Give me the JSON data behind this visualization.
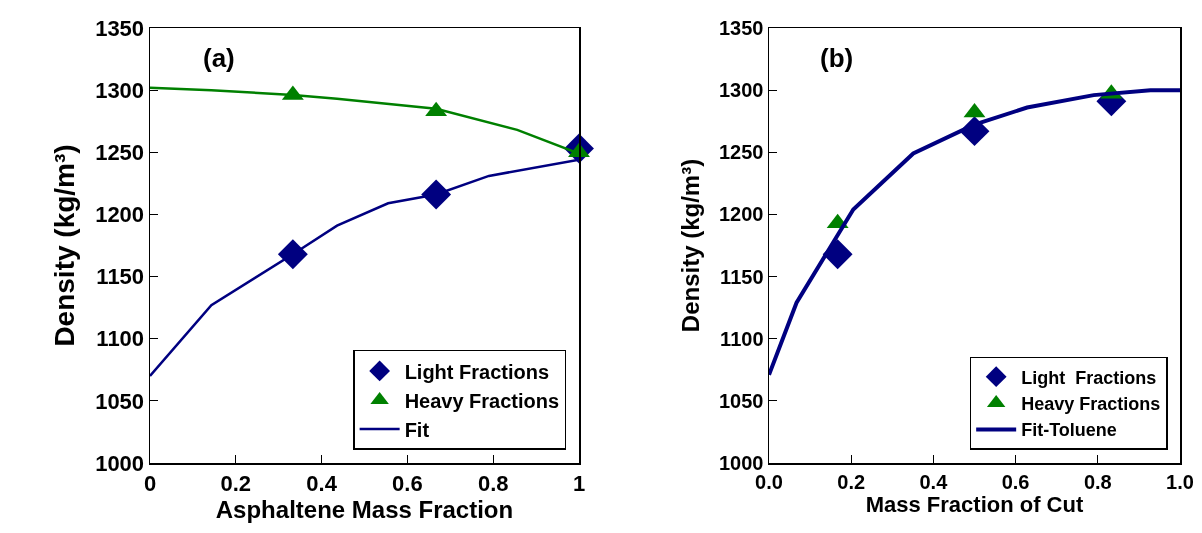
{
  "chart_data": [
    {
      "type": "scatter",
      "xlabel": "Asphaltene Mass Fraction",
      "ylabel": "Density (kg/m³)",
      "annotations": [
        "(a)"
      ],
      "xlim": [
        0,
        1
      ],
      "xticks": [
        0,
        0.2,
        0.4,
        0.6,
        0.8,
        1
      ],
      "ylim": [
        1000,
        1350
      ],
      "yticks": [
        1000,
        1050,
        1100,
        1150,
        1200,
        1250,
        1300,
        1350
      ],
      "grid": false,
      "legend": "bottom right",
      "series": [
        {
          "name": "Light Fractions",
          "marker": "diamond",
          "color": "#000080",
          "x": [
            0.333,
            0.667,
            1
          ],
          "values": [
            1168,
            1216,
            1253
          ]
        },
        {
          "name": "Heavy Fractions",
          "marker": "triangle",
          "color": "#008000",
          "x": [
            0.333,
            0.667,
            1
          ],
          "values": [
            1296,
            1283,
            1250
          ]
        },
        {
          "name": "Fit",
          "type": "line",
          "color": "#000080",
          "x": [
            0,
            0.143,
            0.333,
            0.436,
            0.555,
            0.667,
            0.79,
            1
          ],
          "values": [
            1070,
            1127,
            1168,
            1191,
            1209,
            1216,
            1231,
            1244
          ]
        },
        {
          "type": "line",
          "color": "#008000",
          "x": [
            0,
            0.143,
            0.333,
            0.436,
            0.667,
            0.856,
            1
          ],
          "values": [
            1302,
            1300,
            1296,
            1293,
            1285,
            1268,
            1249
          ]
        }
      ]
    },
    {
      "type": "scatter",
      "xlabel": "Mass Fraction of Cut",
      "ylabel": "Density (kg/m³)",
      "annotations": [
        "(b)"
      ],
      "xlim": [
        0,
        1
      ],
      "xticks": [
        {
          "value": 0,
          "label": "0.0"
        },
        0.2,
        0.4,
        0.6,
        0.8,
        {
          "value": 1,
          "label": "1.0"
        }
      ],
      "ylim": [
        1000,
        1350
      ],
      "yticks": [
        1000,
        1050,
        1100,
        1150,
        1200,
        1250,
        1300,
        1350
      ],
      "grid": false,
      "legend": "bottom right",
      "series": [
        {
          "name": "Light  Fractions",
          "marker": "diamond",
          "color": "#000080",
          "x": [
            0.167,
            0.5,
            0.833
          ],
          "values": [
            1168,
            1267,
            1291
          ]
        },
        {
          "name": "Heavy Fractions",
          "marker": "triangle",
          "color": "#008000",
          "x": [
            0.167,
            0.5,
            0.833
          ],
          "values": [
            1193,
            1282,
            1297
          ]
        },
        {
          "name": "Fit-Toluene",
          "type": "line",
          "color": "#000080",
          "x": [
            0,
            0.067,
            0.205,
            0.351,
            0.498,
            0.628,
            0.79,
            0.928,
            1
          ],
          "values": [
            1071,
            1129,
            1204,
            1249,
            1272,
            1286,
            1296,
            1300,
            1300
          ]
        }
      ]
    }
  ]
}
